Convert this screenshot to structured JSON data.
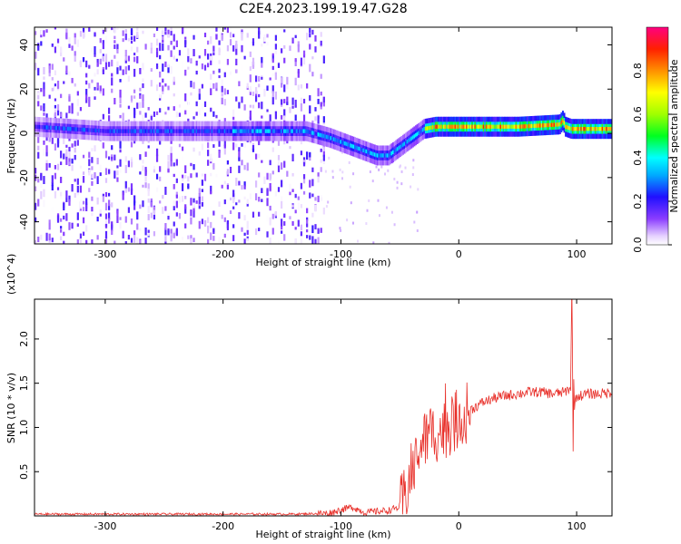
{
  "title": "C2E4.2023.199.19.47.G28",
  "chart_data": [
    {
      "type": "heatmap",
      "xlabel": "Height of straight line (km)",
      "ylabel": "Frequency (Hz)",
      "xlim": [
        -360,
        130
      ],
      "ylim": [
        -50,
        48
      ],
      "x_ticks": [
        -300,
        -200,
        -100,
        0,
        100
      ],
      "y_ticks": [
        -40,
        -20,
        0,
        20,
        40
      ],
      "colorbar": {
        "label": "Normalized spectral amplitude",
        "range": [
          0,
          1
        ],
        "ticks": [
          "0.0",
          "0.2",
          "0.4",
          "0.6",
          "0.8"
        ]
      },
      "grid": false,
      "ridge": {
        "description": "frequency of strongest signal vs height",
        "x": [
          -360,
          -300,
          -200,
          -130,
          -110,
          -90,
          -70,
          -60,
          -50,
          -40,
          -30,
          -20,
          0,
          50,
          85,
          88,
          90,
          95,
          130
        ],
        "y": [
          3,
          1,
          1,
          1,
          -2,
          -6,
          -10,
          -10,
          -6,
          -2,
          2,
          3,
          3,
          3,
          4,
          6,
          3,
          2,
          2
        ]
      }
    },
    {
      "type": "line",
      "xlabel": "Height of straight line (km)",
      "ylabel": "SNR (10 * v/v)",
      "y_multiplier": "(x10^4)",
      "xlim": [
        -360,
        130
      ],
      "ylim": [
        0,
        2.45
      ],
      "x_ticks": [
        -300,
        -200,
        -100,
        0,
        100
      ],
      "y_ticks": [
        0.5,
        1.0,
        1.5,
        2.0
      ],
      "y_tick_labels": [
        "0.5",
        "1.0",
        "1.5",
        "2.0"
      ],
      "grid": false,
      "series": [
        {
          "color": "#e8302a",
          "x": [
            -360,
            -300,
            -200,
            -140,
            -110,
            -100,
            -90,
            -80,
            -70,
            -60,
            -50,
            -45,
            -40,
            -35,
            -30,
            -25,
            -20,
            -15,
            -10,
            -5,
            0,
            10,
            20,
            30,
            40,
            50,
            60,
            70,
            80,
            90,
            95,
            96,
            97,
            100,
            110,
            120,
            130
          ],
          "y": [
            0.02,
            0.02,
            0.02,
            0.02,
            0.03,
            0.07,
            0.1,
            0.04,
            0.05,
            0.06,
            0.1,
            0.25,
            0.5,
            0.7,
            0.85,
            0.9,
            0.95,
            0.95,
            1.0,
            1.05,
            1.1,
            1.2,
            1.28,
            1.33,
            1.36,
            1.38,
            1.4,
            1.4,
            1.38,
            1.4,
            1.45,
            2.35,
            1.2,
            1.35,
            1.38,
            1.38,
            1.4
          ]
        }
      ]
    }
  ]
}
